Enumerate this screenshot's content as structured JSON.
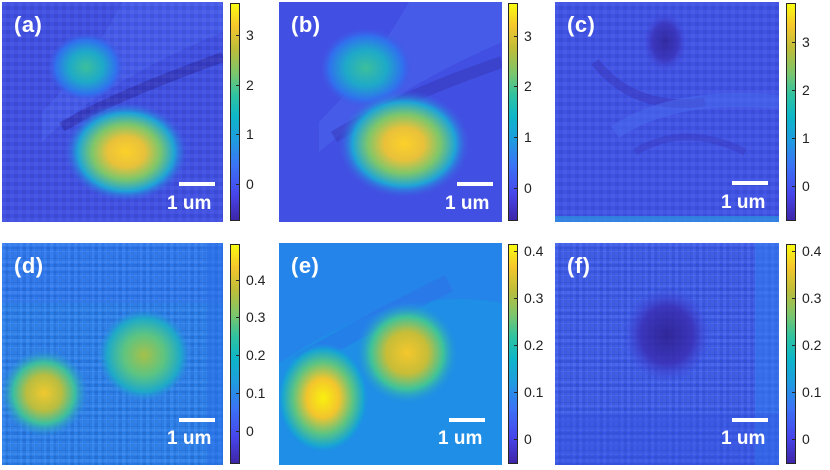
{
  "panels": {
    "a": {
      "label": "(a)",
      "scale": "1 um",
      "ticks": [
        "3",
        "2",
        "1",
        "0"
      ]
    },
    "b": {
      "label": "(b)",
      "scale": "1 um",
      "ticks": [
        "3",
        "2",
        "1",
        "0"
      ]
    },
    "c": {
      "label": "(c)",
      "scale": "1 um",
      "ticks": [
        "3",
        "2",
        "1",
        "0"
      ]
    },
    "d": {
      "label": "(d)",
      "scale": "1 um",
      "ticks": [
        "0.4",
        "0.3",
        "0.2",
        "0.1",
        "0"
      ]
    },
    "e": {
      "label": "(e)",
      "scale": "1 um",
      "ticks": [
        "0.4",
        "0.3",
        "0.2",
        "0.1",
        "0"
      ]
    },
    "f": {
      "label": "(f)",
      "scale": "1 um",
      "ticks": [
        "0.4",
        "0.3",
        "0.2",
        "0.1",
        "0"
      ]
    }
  },
  "colors": {
    "background": "#3f4fe0",
    "colormap_low": "#3e26a8",
    "colormap_mid": "#0db6c8",
    "colormap_high": "#f9fb0e",
    "label_text": "#ffffff"
  }
}
